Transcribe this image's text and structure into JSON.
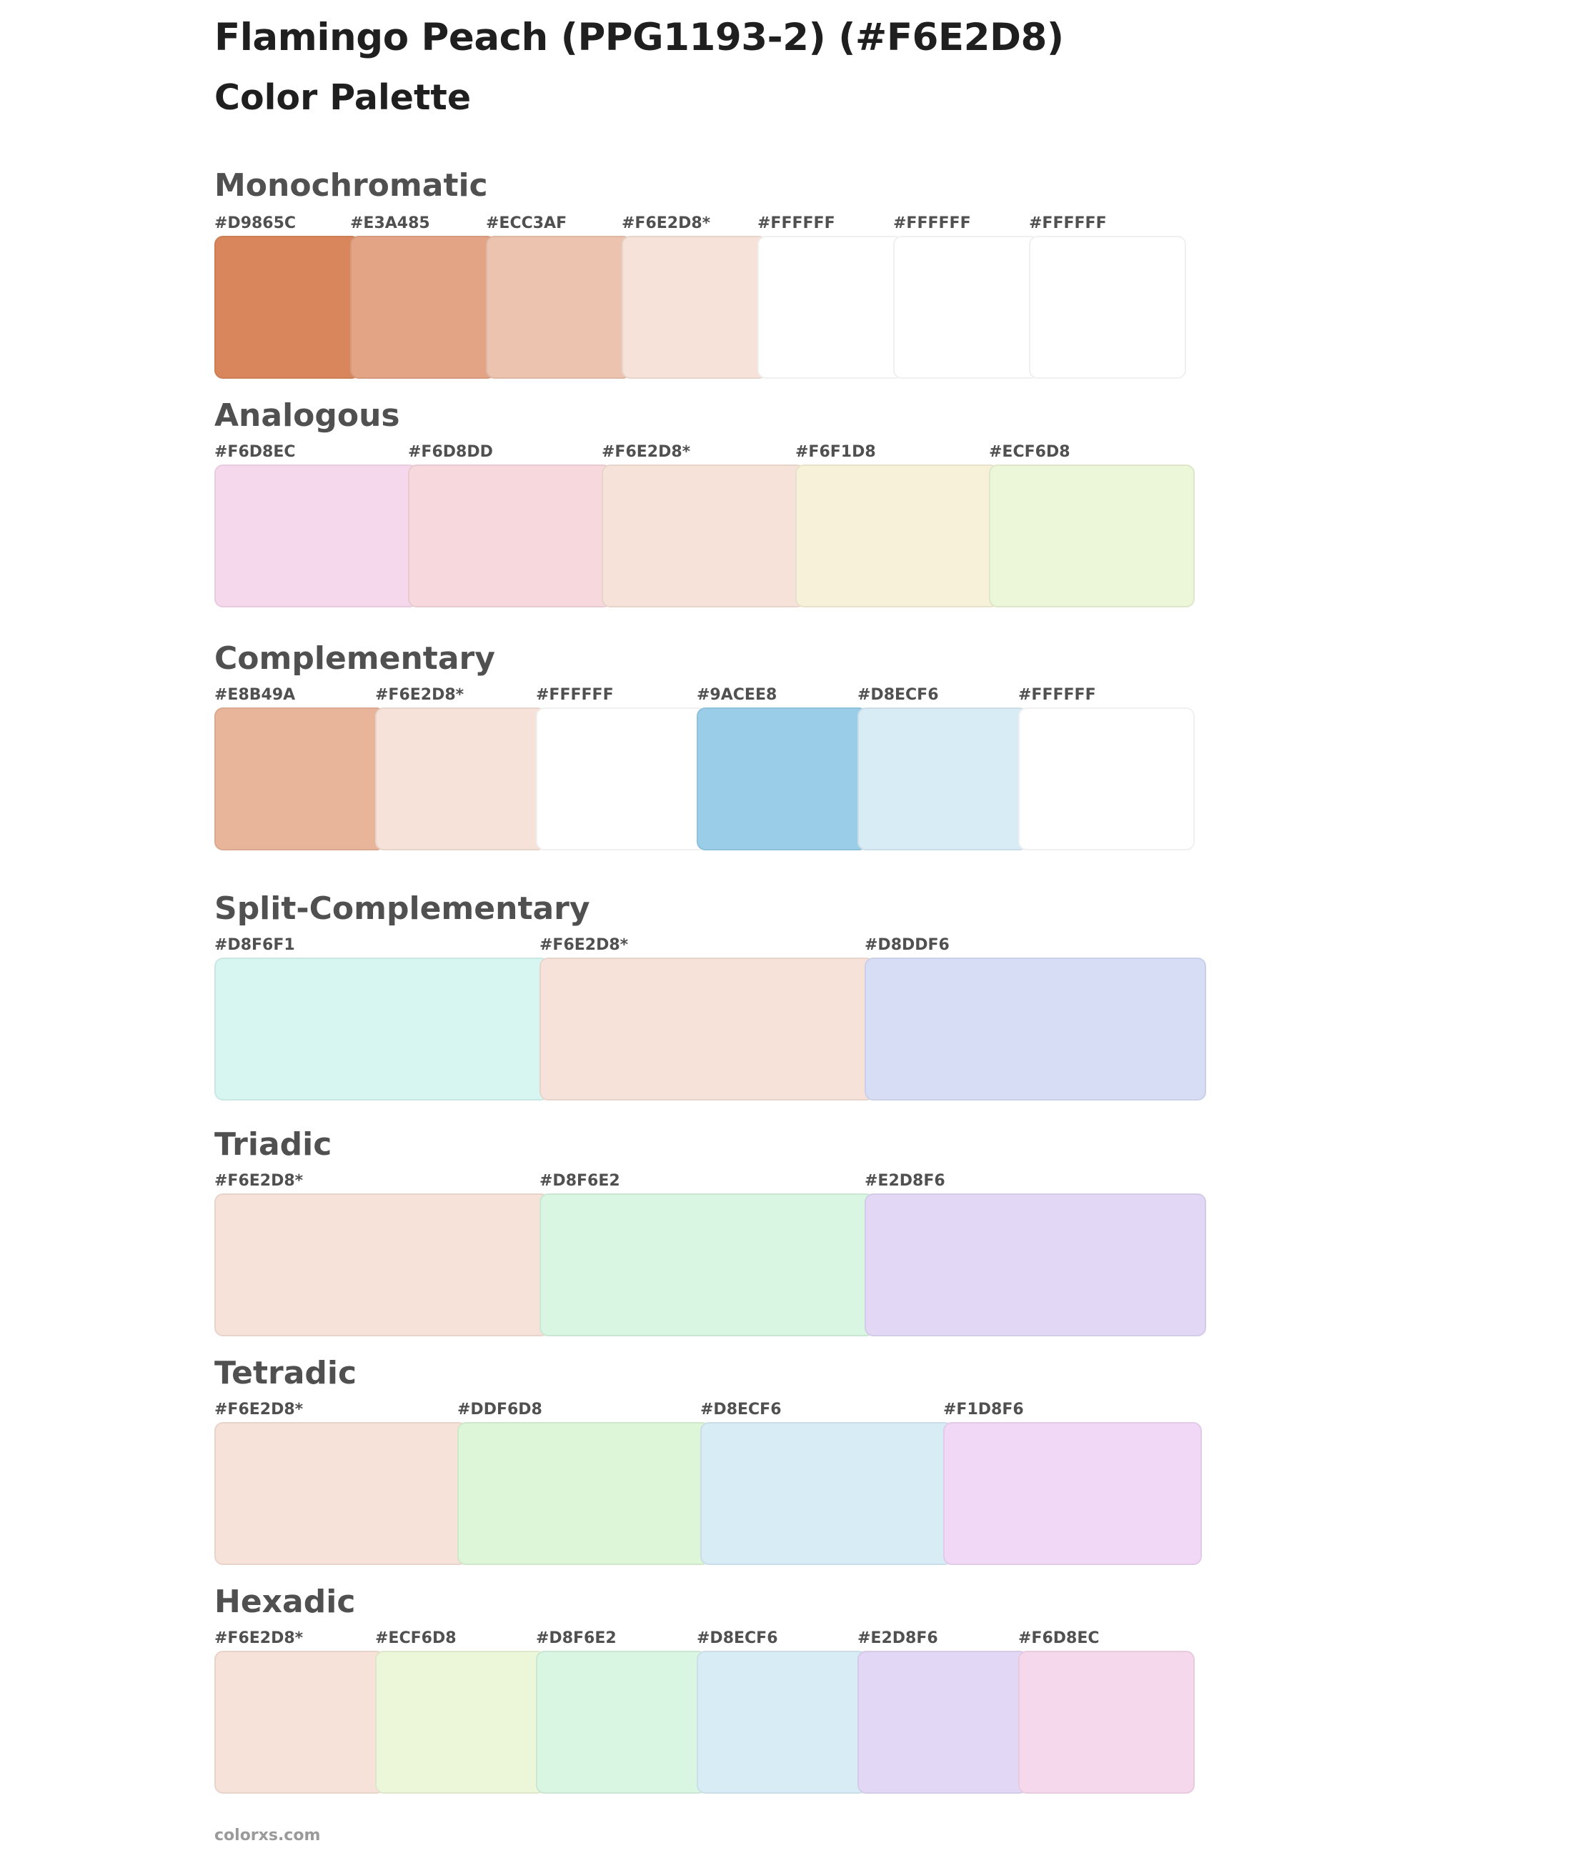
{
  "title": "Flamingo Peach (PPG1193-2) (#F6E2D8)",
  "subtitle": "Color Palette",
  "footer": "colorxs.com",
  "sections": [
    {
      "name": "Monochromatic",
      "swatches": [
        {
          "label": "#D9865C",
          "color": "#D9865C"
        },
        {
          "label": "#E3A485",
          "color": "#E3A485"
        },
        {
          "label": "#ECC3AF",
          "color": "#ECC3AF"
        },
        {
          "label": "#F6E2D8*",
          "color": "#F6E2D8"
        },
        {
          "label": "#FFFFFF",
          "color": "#FFFFFF"
        },
        {
          "label": "#FFFFFF",
          "color": "#FFFFFF"
        },
        {
          "label": "#FFFFFF",
          "color": "#FFFFFF"
        }
      ]
    },
    {
      "name": "Analogous",
      "swatches": [
        {
          "label": "#F6D8EC",
          "color": "#F6D8EC"
        },
        {
          "label": "#F6D8DD",
          "color": "#F6D8DD"
        },
        {
          "label": "#F6E2D8*",
          "color": "#F6E2D8"
        },
        {
          "label": "#F6F1D8",
          "color": "#F6F1D8"
        },
        {
          "label": "#ECF6D8",
          "color": "#ECF6D8"
        }
      ]
    },
    {
      "name": "Complementary",
      "swatches": [
        {
          "label": "#E8B49A",
          "color": "#E8B49A"
        },
        {
          "label": "#F6E2D8*",
          "color": "#F6E2D8"
        },
        {
          "label": "#FFFFFF",
          "color": "#FFFFFF"
        },
        {
          "label": "#9ACEE8",
          "color": "#9ACEE8"
        },
        {
          "label": "#D8ECF6",
          "color": "#D8ECF6"
        },
        {
          "label": "#FFFFFF",
          "color": "#FFFFFF"
        }
      ]
    },
    {
      "name": "Split-Complementary",
      "swatches": [
        {
          "label": "#D8F6F1",
          "color": "#D8F6F1"
        },
        {
          "label": "#F6E2D8*",
          "color": "#F6E2D8"
        },
        {
          "label": "#D8DDF6",
          "color": "#D8DDF6"
        }
      ]
    },
    {
      "name": "Triadic",
      "swatches": [
        {
          "label": "#F6E2D8*",
          "color": "#F6E2D8"
        },
        {
          "label": "#D8F6E2",
          "color": "#D8F6E2"
        },
        {
          "label": "#E2D8F6",
          "color": "#E2D8F6"
        }
      ]
    },
    {
      "name": "Tetradic",
      "swatches": [
        {
          "label": "#F6E2D8*",
          "color": "#F6E2D8"
        },
        {
          "label": "#DDF6D8",
          "color": "#DDF6D8"
        },
        {
          "label": "#D8ECF6",
          "color": "#D8ECF6"
        },
        {
          "label": "#F1D8F6",
          "color": "#F1D8F6"
        }
      ]
    },
    {
      "name": "Hexadic",
      "swatches": [
        {
          "label": "#F6E2D8*",
          "color": "#F6E2D8"
        },
        {
          "label": "#ECF6D8",
          "color": "#ECF6D8"
        },
        {
          "label": "#D8F6E2",
          "color": "#D8F6E2"
        },
        {
          "label": "#D8ECF6",
          "color": "#D8ECF6"
        },
        {
          "label": "#E2D8F6",
          "color": "#E2D8F6"
        },
        {
          "label": "#F6D8EC",
          "color": "#F6D8EC"
        }
      ]
    }
  ]
}
